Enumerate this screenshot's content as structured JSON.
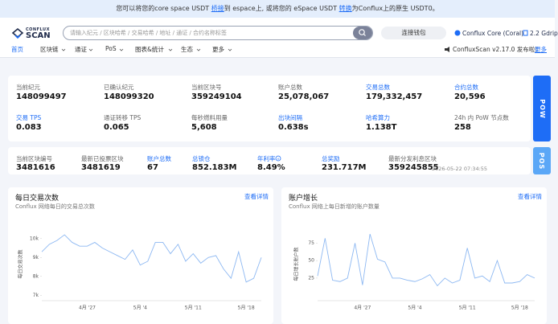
{
  "banner": {
    "before": "您可以将您的core space USDT ",
    "link1": "桥接",
    "middle": "到 espace上, 或将您的 eSpace USDT ",
    "link2": "转换",
    "after": "为Conflux上的原生 USDT0。"
  },
  "header": {
    "logo_top": "CONFLUX",
    "logo_bottom": "SCAN",
    "search_placeholder": "请输入纪元 / 区块哈希 / 交易哈希 / 地址 / 通证 / 合约名称标签",
    "connect_button": "连接钱包",
    "network": "Conflux Core (Coral)",
    "gas": "2.2 Gdrip"
  },
  "nav": {
    "items": [
      "首页",
      "区块链",
      "通证",
      "PoS",
      "图表&统计",
      "生态",
      "更多"
    ],
    "announcement": "ConfluxScan v2.17.0 发布啦!",
    "more": "更多"
  },
  "pow": {
    "tab": "POW",
    "stats": [
      {
        "label": "当前纪元",
        "value": "148099497"
      },
      {
        "label": "已确认纪元",
        "value": "148099320"
      },
      {
        "label": "当前区块号",
        "value": "359249104"
      },
      {
        "label": "账户总数",
        "value": "25,078,067"
      },
      {
        "label": "交易总数",
        "value": "179,332,457"
      },
      {
        "label": "合约总数",
        "value": "20,596"
      },
      {
        "label": "交易 TPS",
        "value": "0.083"
      },
      {
        "label": "通证转移 TPS",
        "value": "0.065"
      },
      {
        "label": "每秒燃料用量",
        "value": "5,608"
      },
      {
        "label": "出块间隔",
        "value": "0.638s"
      },
      {
        "label": "哈希算力",
        "value": "1.138T"
      },
      {
        "label": "24h 内 PoW 节点数",
        "value": "258"
      }
    ]
  },
  "pos": {
    "tab": "POS",
    "stats": [
      {
        "label": "当前区块编号",
        "value": "3481616"
      },
      {
        "label": "最新已投票区块",
        "value": "3481619"
      },
      {
        "label": "账户总数",
        "value": "67"
      },
      {
        "label": "总锁仓",
        "value": "852.183M"
      },
      {
        "label": "年利率",
        "value": "8.49%"
      },
      {
        "label": "总奖励",
        "value": "231.717M"
      },
      {
        "label": "最新分发利息区块",
        "value": "359245855"
      }
    ],
    "time": "2026-05-22 07:34:55"
  },
  "charts": [
    {
      "title": "每日交易次数",
      "subtitle": "Conflux 网络每日的交易总次数",
      "link": "查看详情",
      "y_label": "每日交易次数",
      "ylim": [
        6800,
        10500
      ],
      "yticks": [
        {
          "value": 7000,
          "label": "7k"
        },
        {
          "value": 8000,
          "label": "8k"
        },
        {
          "value": 9000,
          "label": "9k"
        },
        {
          "value": 10000,
          "label": "10k"
        }
      ],
      "categories": [
        null,
        null,
        null,
        null,
        null,
        null,
        "4月 '27",
        null,
        null,
        null,
        null,
        null,
        null,
        "5月 '4",
        null,
        null,
        null,
        null,
        null,
        null,
        "5月 '11",
        null,
        null,
        null,
        null,
        null,
        null,
        "5月 '18",
        null,
        null
      ],
      "values": [
        9300,
        9700,
        9900,
        10200,
        9800,
        9600,
        9600,
        9800,
        9500,
        9300,
        9100,
        8900,
        9400,
        8600,
        8800,
        9800,
        9800,
        9200,
        9700,
        8800,
        9200,
        8700,
        9000,
        9100,
        8400,
        7900,
        9300,
        7700,
        7900,
        9000
      ]
    },
    {
      "title": "账户增长",
      "subtitle": "Conflux 网络上每日新增的账户数量",
      "link": "查看详情",
      "y_label": "每日增长账户数",
      "ylim": [
        -5,
        95
      ],
      "yticks": [
        25,
        50,
        75
      ],
      "categories": [
        null,
        null,
        null,
        null,
        null,
        null,
        "4月 '27",
        null,
        null,
        null,
        null,
        null,
        null,
        "5月 '4",
        null,
        null,
        null,
        null,
        null,
        null,
        "5月 '11",
        null,
        null,
        null,
        null,
        null,
        null,
        "5月 '18",
        null,
        null
      ],
      "values": [
        28,
        82,
        22,
        20,
        25,
        75,
        15,
        88,
        52,
        48,
        25,
        25,
        22,
        20,
        24,
        30,
        14,
        25,
        18,
        22,
        68,
        25,
        28,
        20,
        50,
        18,
        18,
        20,
        30,
        25
      ]
    }
  ]
}
